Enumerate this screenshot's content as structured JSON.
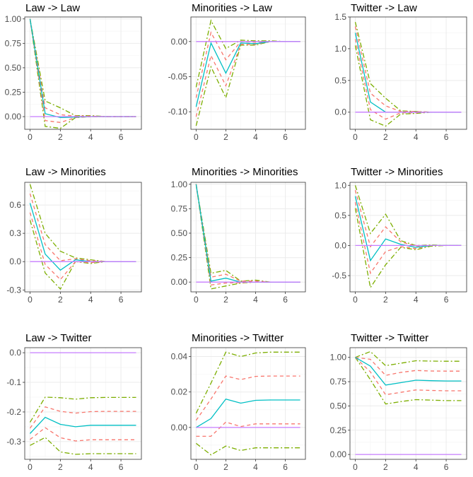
{
  "colors": {
    "irf": "#00BFC4",
    "ci68": "#F8766D",
    "ci95": "#7CAE00",
    "zero": "#C77CFF",
    "grid": "#ebebeb",
    "border": "#333333"
  },
  "chart_data": [
    {
      "type": "line",
      "title": "Law -> Law",
      "x": [
        0,
        1,
        2,
        3,
        4,
        5,
        6,
        7
      ],
      "xticks": [
        0,
        2,
        4,
        6
      ],
      "yticks": [
        0,
        0.25,
        0.5,
        0.75,
        1
      ],
      "ytick_labels": [
        "0.00",
        "0.25",
        "0.50",
        "0.75",
        "1.00"
      ],
      "ylim": [
        -0.13,
        1.02
      ],
      "series": [
        {
          "name": "upper95",
          "values": [
            1,
            0.16,
            0.09,
            0.01,
            0.01,
            0,
            0,
            0
          ]
        },
        {
          "name": "lower95",
          "values": [
            1,
            -0.1,
            -0.12,
            -0.01,
            0,
            0,
            0,
            0
          ]
        },
        {
          "name": "upper68",
          "values": [
            1,
            0.09,
            0.02,
            0.005,
            0.005,
            0,
            0,
            0
          ]
        },
        {
          "name": "lower68",
          "values": [
            1,
            -0.04,
            -0.06,
            -0.01,
            0,
            0,
            0,
            0
          ]
        },
        {
          "name": "irf",
          "values": [
            1,
            0.03,
            -0.01,
            -0.005,
            0,
            0,
            0,
            0
          ]
        },
        {
          "name": "zero",
          "values": [
            0,
            0,
            0,
            0,
            0,
            0,
            0,
            0
          ]
        }
      ]
    },
    {
      "type": "line",
      "title": "Minorities -> Law",
      "x": [
        0,
        1,
        2,
        3,
        4,
        5,
        6,
        7
      ],
      "xticks": [
        0,
        2,
        4,
        6
      ],
      "yticks": [
        -0.1,
        -0.05,
        0
      ],
      "ytick_labels": [
        "-0.10",
        "-0.05",
        "0.00"
      ],
      "ylim": [
        -0.125,
        0.035
      ],
      "series": [
        {
          "name": "upper95",
          "values": [
            -0.065,
            0.03,
            -0.01,
            0.002,
            0.001,
            0.001,
            0,
            0
          ]
        },
        {
          "name": "lower95",
          "values": [
            -0.12,
            -0.036,
            -0.08,
            -0.005,
            -0.005,
            0,
            0,
            0
          ]
        },
        {
          "name": "upper68",
          "values": [
            -0.08,
            0.013,
            -0.026,
            0,
            -0.001,
            0,
            0,
            0
          ]
        },
        {
          "name": "lower68",
          "values": [
            -0.107,
            -0.02,
            -0.063,
            -0.004,
            -0.004,
            0,
            0,
            0
          ]
        },
        {
          "name": "irf",
          "values": [
            -0.093,
            -0.002,
            -0.045,
            -0.002,
            -0.003,
            0,
            0,
            0
          ]
        },
        {
          "name": "zero",
          "values": [
            0,
            0,
            0,
            0,
            0,
            0,
            0,
            0
          ]
        }
      ]
    },
    {
      "type": "line",
      "title": "Twitter -> Law",
      "x": [
        0,
        1,
        2,
        3,
        4,
        5,
        6,
        7
      ],
      "xticks": [
        0,
        2,
        4,
        6
      ],
      "yticks": [
        0,
        0.5,
        1,
        1.5
      ],
      "ytick_labels": [
        "0.0",
        "0.5",
        "1.0",
        "1.5"
      ],
      "ylim": [
        -0.27,
        1.5
      ],
      "series": [
        {
          "name": "upper95",
          "values": [
            1.42,
            0.45,
            0.22,
            0.02,
            0.01,
            0,
            0,
            0
          ]
        },
        {
          "name": "lower95",
          "values": [
            1.05,
            -0.12,
            -0.22,
            -0.03,
            -0.02,
            0,
            0,
            0
          ]
        },
        {
          "name": "upper68",
          "values": [
            1.35,
            0.3,
            0.1,
            0.01,
            0.01,
            0,
            0,
            0
          ]
        },
        {
          "name": "lower68",
          "values": [
            1.15,
            0.04,
            -0.11,
            -0.01,
            -0.01,
            0,
            0,
            0
          ]
        },
        {
          "name": "irf",
          "values": [
            1.25,
            0.16,
            0,
            0,
            0,
            0,
            0,
            0
          ]
        },
        {
          "name": "zero",
          "values": [
            0,
            0,
            0,
            0,
            0,
            0,
            0,
            0
          ]
        }
      ]
    },
    {
      "type": "line",
      "title": "Law -> Minorities",
      "x": [
        0,
        1,
        2,
        3,
        4,
        5,
        6,
        7
      ],
      "xticks": [
        0,
        2,
        4,
        6
      ],
      "yticks": [
        -0.3,
        0,
        0.3,
        0.6
      ],
      "ytick_labels": [
        "-0.3",
        "0.0",
        "0.3",
        "0.6"
      ],
      "ylim": [
        -0.32,
        0.84
      ],
      "series": [
        {
          "name": "upper95",
          "values": [
            0.82,
            0.3,
            0.11,
            0.04,
            0.02,
            0,
            0,
            0
          ]
        },
        {
          "name": "lower95",
          "values": [
            0.44,
            -0.12,
            -0.29,
            0,
            -0.02,
            0,
            0,
            0
          ]
        },
        {
          "name": "upper68",
          "values": [
            0.72,
            0.18,
            0.01,
            0.03,
            0.01,
            0,
            0,
            0
          ]
        },
        {
          "name": "lower68",
          "values": [
            0.52,
            -0.03,
            -0.19,
            0,
            -0.01,
            0,
            0,
            0
          ]
        },
        {
          "name": "irf",
          "values": [
            0.62,
            0.08,
            -0.09,
            0.02,
            0,
            0,
            0,
            0
          ]
        },
        {
          "name": "zero",
          "values": [
            0,
            0,
            0,
            0,
            0,
            0,
            0,
            0
          ]
        }
      ]
    },
    {
      "type": "line",
      "title": "Minorities -> Minorities",
      "x": [
        0,
        1,
        2,
        3,
        4,
        5,
        6,
        7
      ],
      "xticks": [
        0,
        2,
        4,
        6
      ],
      "yticks": [
        0,
        0.25,
        0.5,
        0.75,
        1
      ],
      "ytick_labels": [
        "0.00",
        "0.25",
        "0.50",
        "0.75",
        "1.00"
      ],
      "ylim": [
        -0.1,
        1.02
      ],
      "series": [
        {
          "name": "upper95",
          "values": [
            1,
            0.09,
            0.12,
            0.01,
            0.02,
            0,
            0,
            0
          ]
        },
        {
          "name": "lower95",
          "values": [
            1,
            -0.07,
            -0.04,
            -0.01,
            0,
            0,
            0,
            0
          ]
        },
        {
          "name": "upper68",
          "values": [
            1,
            0.05,
            0.08,
            0.01,
            0.01,
            0,
            0,
            0
          ]
        },
        {
          "name": "lower68",
          "values": [
            1,
            -0.03,
            -0.01,
            -0.005,
            0,
            0,
            0,
            0
          ]
        },
        {
          "name": "irf",
          "values": [
            1,
            0.01,
            0.04,
            0,
            0,
            0,
            0,
            0
          ]
        },
        {
          "name": "zero",
          "values": [
            0,
            0,
            0,
            0,
            0,
            0,
            0,
            0
          ]
        }
      ]
    },
    {
      "type": "line",
      "title": "Twitter -> Minorities",
      "x": [
        0,
        1,
        2,
        3,
        4,
        5,
        6,
        7
      ],
      "xticks": [
        0,
        2,
        4,
        6
      ],
      "yticks": [
        -0.5,
        0,
        0.5,
        1
      ],
      "ytick_labels": [
        "-0.5",
        "0.0",
        "0.5",
        "1.0"
      ],
      "ylim": [
        -0.77,
        1.05
      ],
      "series": [
        {
          "name": "upper95",
          "values": [
            1.0,
            0.2,
            0.52,
            0.08,
            0,
            0.01,
            0,
            0
          ]
        },
        {
          "name": "lower95",
          "values": [
            0.62,
            -0.7,
            -0.32,
            -0.03,
            -0.07,
            -0.01,
            0,
            0
          ]
        },
        {
          "name": "upper68",
          "values": [
            0.92,
            -0.02,
            0.31,
            0.06,
            -0.01,
            0,
            0,
            0
          ]
        },
        {
          "name": "lower68",
          "values": [
            0.72,
            -0.46,
            -0.1,
            -0.02,
            -0.05,
            0,
            0,
            0
          ]
        },
        {
          "name": "irf",
          "values": [
            0.82,
            -0.25,
            0.11,
            0.02,
            -0.03,
            0,
            0,
            0
          ]
        },
        {
          "name": "zero",
          "values": [
            0,
            0,
            0,
            0,
            0,
            0,
            0,
            0
          ]
        }
      ]
    },
    {
      "type": "line",
      "title": "Law -> Twitter",
      "x": [
        0,
        1,
        2,
        3,
        4,
        5,
        6,
        7
      ],
      "xticks": [
        0,
        2,
        4,
        6
      ],
      "yticks": [
        -0.3,
        -0.2,
        -0.1,
        0
      ],
      "ytick_labels": [
        "-0.3",
        "-0.2",
        "-0.1",
        "0.0"
      ],
      "ylim": [
        -0.36,
        0.017
      ],
      "series": [
        {
          "name": "upper95",
          "values": [
            -0.235,
            -0.15,
            -0.152,
            -0.157,
            -0.152,
            -0.151,
            -0.151,
            -0.151
          ]
        },
        {
          "name": "lower95",
          "values": [
            -0.313,
            -0.286,
            -0.335,
            -0.343,
            -0.341,
            -0.341,
            -0.341,
            -0.341
          ]
        },
        {
          "name": "upper68",
          "values": [
            -0.255,
            -0.183,
            -0.198,
            -0.204,
            -0.199,
            -0.198,
            -0.198,
            -0.198
          ]
        },
        {
          "name": "lower68",
          "values": [
            -0.293,
            -0.253,
            -0.287,
            -0.298,
            -0.294,
            -0.294,
            -0.294,
            -0.294
          ]
        },
        {
          "name": "irf",
          "values": [
            -0.273,
            -0.218,
            -0.242,
            -0.25,
            -0.245,
            -0.245,
            -0.245,
            -0.245
          ]
        },
        {
          "name": "zero",
          "values": [
            0,
            0,
            0,
            0,
            0,
            0,
            0,
            0
          ]
        }
      ]
    },
    {
      "type": "line",
      "title": "Minorities -> Twitter",
      "x": [
        0,
        1,
        2,
        3,
        4,
        5,
        6,
        7
      ],
      "xticks": [
        0,
        2,
        4,
        6
      ],
      "yticks": [
        0,
        0.02,
        0.04
      ],
      "ytick_labels": [
        "0.00",
        "0.02",
        "0.04"
      ],
      "ylim": [
        -0.018,
        0.045
      ],
      "series": [
        {
          "name": "upper95",
          "values": [
            0.008,
            0.025,
            0.0425,
            0.04,
            0.042,
            0.0425,
            0.0425,
            0.0425
          ]
        },
        {
          "name": "lower95",
          "values": [
            -0.009,
            -0.0155,
            -0.0105,
            -0.013,
            -0.0115,
            -0.0115,
            -0.0115,
            -0.0115
          ]
        },
        {
          "name": "upper68",
          "values": [
            0.004,
            0.016,
            0.029,
            0.027,
            0.0288,
            0.029,
            0.029,
            0.029
          ]
        },
        {
          "name": "lower68",
          "values": [
            -0.005,
            -0.005,
            0.003,
            0.0005,
            0.002,
            0.002,
            0.002,
            0.002
          ]
        },
        {
          "name": "irf",
          "values": [
            0,
            0.005,
            0.016,
            0.0137,
            0.0153,
            0.0155,
            0.0155,
            0.0155
          ]
        },
        {
          "name": "zero",
          "values": [
            0,
            0,
            0,
            0,
            0,
            0,
            0,
            0
          ]
        }
      ]
    },
    {
      "type": "line",
      "title": "Twitter -> Twitter",
      "x": [
        0,
        1,
        2,
        3,
        4,
        5,
        6,
        7
      ],
      "xticks": [
        0,
        2,
        4,
        6
      ],
      "yticks": [
        0,
        0.25,
        0.5,
        0.75,
        1
      ],
      "ytick_labels": [
        "0.00",
        "0.25",
        "0.50",
        "0.75",
        "1.00"
      ],
      "ylim": [
        -0.05,
        1.1
      ],
      "series": [
        {
          "name": "upper95",
          "values": [
            1,
            1.06,
            0.915,
            0.94,
            0.965,
            0.962,
            0.96,
            0.96
          ]
        },
        {
          "name": "lower95",
          "values": [
            1,
            0.77,
            0.52,
            0.545,
            0.565,
            0.56,
            0.555,
            0.555
          ]
        },
        {
          "name": "upper68",
          "values": [
            1,
            0.98,
            0.815,
            0.845,
            0.865,
            0.86,
            0.858,
            0.858
          ]
        },
        {
          "name": "lower68",
          "values": [
            1,
            0.85,
            0.615,
            0.64,
            0.665,
            0.66,
            0.656,
            0.656
          ]
        },
        {
          "name": "irf",
          "values": [
            1,
            0.91,
            0.715,
            0.74,
            0.765,
            0.76,
            0.757,
            0.757
          ]
        },
        {
          "name": "zero",
          "values": [
            0,
            0,
            0,
            0,
            0,
            0,
            0,
            0
          ]
        }
      ]
    }
  ]
}
